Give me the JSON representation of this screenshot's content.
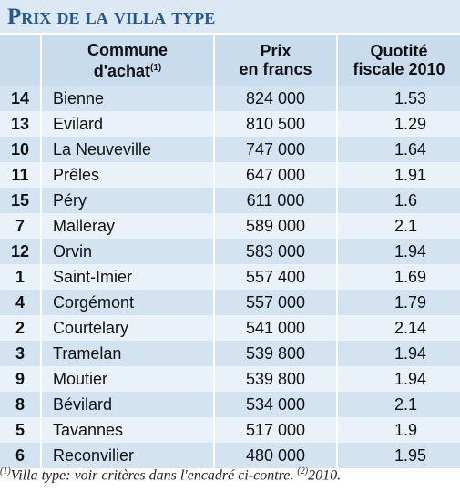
{
  "title": "Prix de la villa type",
  "header": {
    "commune": [
      "Commune",
      "d'achat"
    ],
    "commune_sup": "(1)",
    "prix": [
      "Prix",
      "en francs"
    ],
    "quotite": [
      "Quotité",
      "fiscale 2010"
    ]
  },
  "table": {
    "rows": [
      [
        14,
        "Bienne",
        "824 000",
        1.53
      ],
      [
        13,
        "Evilard",
        "810 500",
        1.29
      ],
      [
        10,
        "La Neuveville",
        "747 000",
        1.64
      ],
      [
        11,
        "Prêles",
        "647 000",
        1.91
      ],
      [
        15,
        "Péry",
        "611 000",
        1.6
      ],
      [
        7,
        "Malleray",
        "589 000",
        2.1
      ],
      [
        12,
        "Orvin",
        "583 000",
        1.94
      ],
      [
        1,
        "Saint-Imier",
        "557 400",
        1.69
      ],
      [
        4,
        "Corgémont",
        "557 000",
        1.79
      ],
      [
        2,
        "Courtelary",
        "541 000",
        2.14
      ],
      [
        3,
        "Tramelan",
        "539 800",
        1.94
      ],
      [
        9,
        "Moutier",
        "539 800",
        1.94
      ],
      [
        8,
        "Bévilard",
        "534 000",
        2.1
      ],
      [
        5,
        "Tavannes",
        "517 000",
        1.9
      ],
      [
        6,
        "Reconvilier",
        "480 000",
        1.95
      ]
    ]
  },
  "footnote": {
    "sup1": "(1)",
    "text1": "Villa type: voir critères dans l'encadré ci-contre.",
    "sup2": "(2)",
    "text2": "2010."
  }
}
